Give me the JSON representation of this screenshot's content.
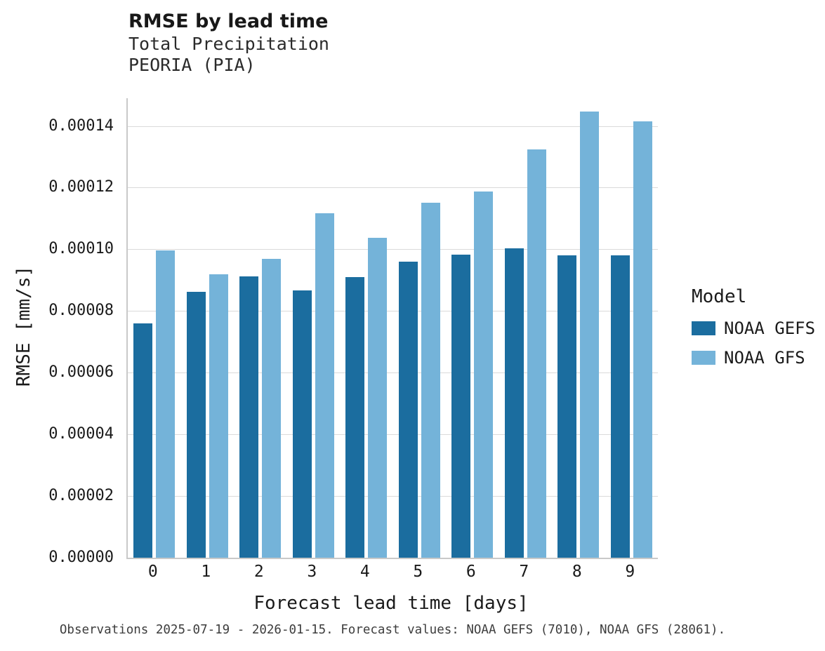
{
  "chart_data": {
    "type": "bar",
    "title": "RMSE by lead time",
    "subtitle": [
      "Total Precipitation",
      "PEORIA (PIA)"
    ],
    "categories": [
      "0",
      "1",
      "2",
      "3",
      "4",
      "5",
      "6",
      "7",
      "8",
      "9"
    ],
    "series": [
      {
        "name": "NOAA GEFS",
        "color": "#1b6d9f",
        "values": [
          7.6e-05,
          8.62e-05,
          9.13e-05,
          8.67e-05,
          9.1e-05,
          9.6e-05,
          9.83e-05,
          0.0001004,
          9.8e-05,
          9.8e-05
        ]
      },
      {
        "name": "NOAA GFS",
        "color": "#74b3d9",
        "values": [
          9.97e-05,
          9.18e-05,
          9.68e-05,
          0.0001117,
          0.0001038,
          0.0001152,
          0.0001188,
          0.0001323,
          0.0001447,
          0.0001415
        ]
      }
    ],
    "xlabel": "Forecast lead time [days]",
    "ylabel": "RMSE [mm/s]",
    "ylim": [
      0,
      0.000149
    ],
    "yticks": [
      0,
      2e-05,
      4e-05,
      6e-05,
      8e-05,
      0.0001,
      0.00012,
      0.00014
    ],
    "ytick_labels": [
      "0.00000",
      "0.00002",
      "0.00004",
      "0.00006",
      "0.00008",
      "0.00010",
      "0.00012",
      "0.00014"
    ],
    "grid": "horizontal",
    "legend_position": "right",
    "legend_title": "Model",
    "caption": "Observations 2025-07-19 - 2026-01-15. Forecast values: NOAA GEFS (7010), NOAA GFS (28061)."
  }
}
